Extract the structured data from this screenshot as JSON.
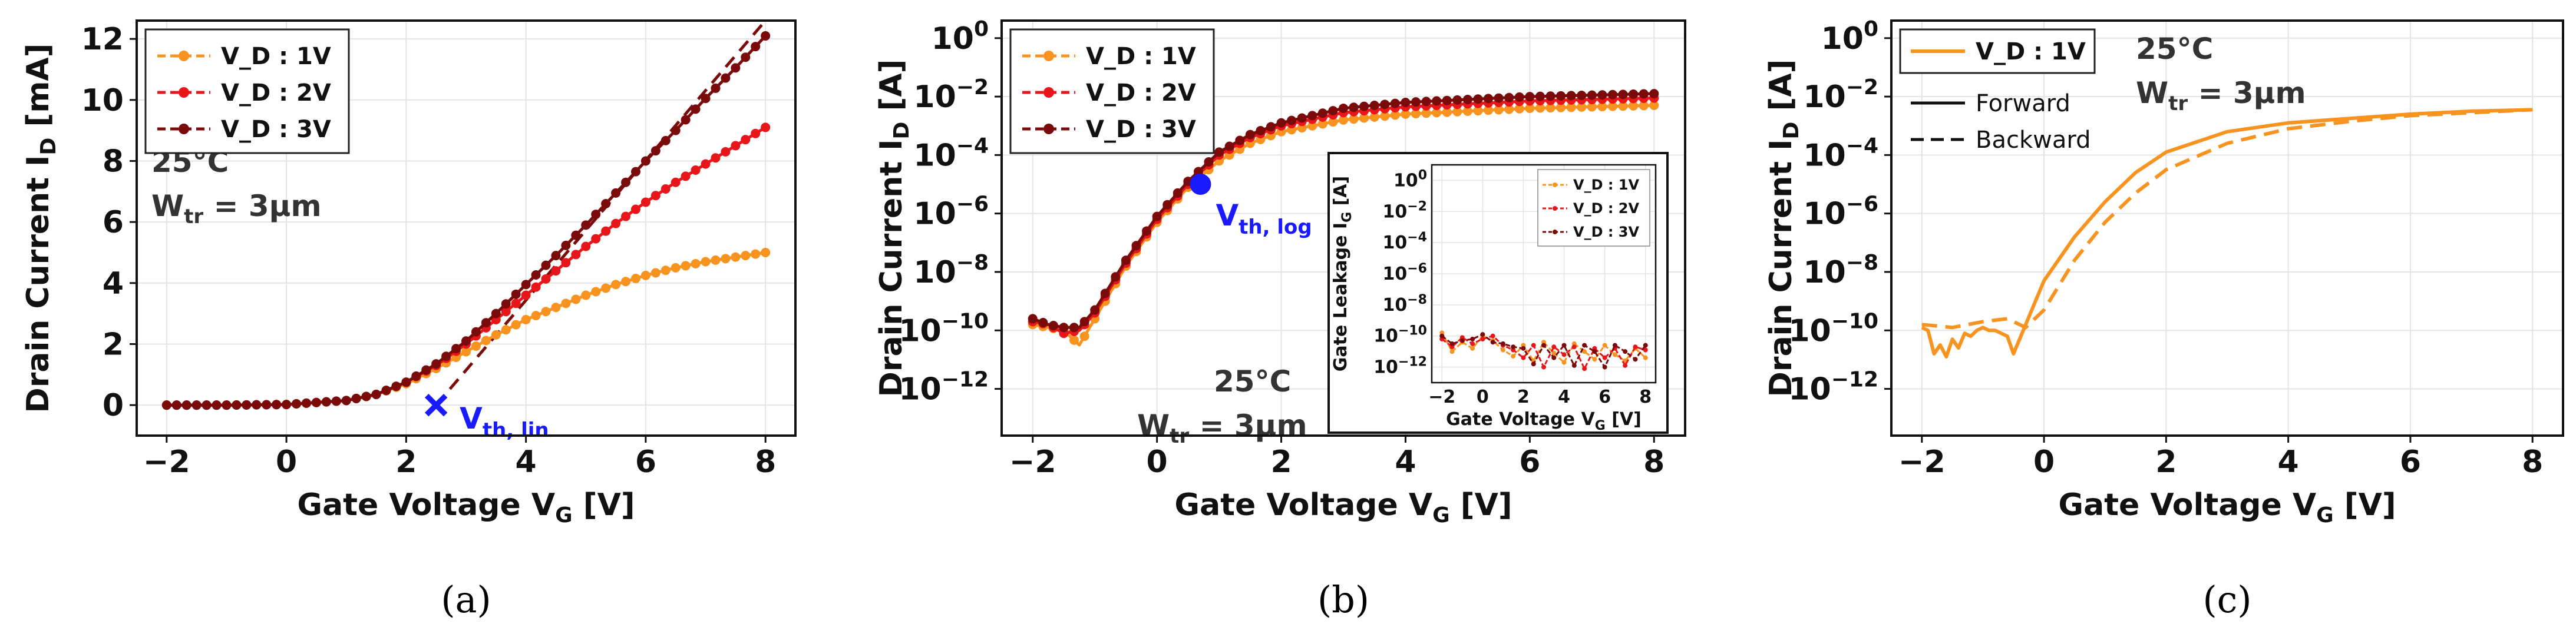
{
  "chart_data": [
    {
      "panel": "a",
      "type": "line",
      "caption": "(a)",
      "xlabel_main": "Gate Voltage  V",
      "xlabel_sub": "G",
      "xlabel_unit": " [V]",
      "ylabel_main": "Drain Current  I",
      "ylabel_sub": "D",
      "ylabel_unit": " [mA]",
      "xlim": [
        -2.5,
        8.5
      ],
      "ylim": [
        -1.0,
        12.6
      ],
      "xticks": [
        "−2",
        "0",
        "2",
        "4",
        "6",
        "8"
      ],
      "yticks": [
        "0",
        "2",
        "4",
        "6",
        "8",
        "10",
        "12"
      ],
      "annotation_temp": "25°C",
      "annotation_w": "W",
      "annotation_w_sub": "tr",
      "annotation_w_val": " = 3μm",
      "vth_label": "V",
      "vth_sub": "th, lin",
      "vth_point": [
        2.5,
        0
      ],
      "fit_line": {
        "x": [
          2.5,
          8.0
        ],
        "y": [
          0,
          12.6
        ]
      },
      "legend": [
        "V_D : 1V",
        "V_D : 2V",
        "V_D : 3V"
      ],
      "series": [
        {
          "name": "V_D : 1V",
          "color": "#f7931e",
          "x": [
            -2,
            -1,
            0,
            1,
            1.5,
            2,
            2.5,
            3,
            3.5,
            4,
            4.5,
            5,
            5.5,
            6,
            6.5,
            7,
            7.5,
            8
          ],
          "y": [
            0,
            0,
            0.02,
            0.15,
            0.35,
            0.7,
            1.2,
            1.75,
            2.3,
            2.8,
            3.2,
            3.6,
            3.95,
            4.25,
            4.5,
            4.7,
            4.85,
            5.0
          ]
        },
        {
          "name": "V_D : 2V",
          "color": "#e8161b",
          "x": [
            -2,
            -1,
            0,
            1,
            1.5,
            2,
            2.5,
            3,
            3.5,
            4,
            4.5,
            5,
            5.5,
            6,
            6.5,
            7,
            7.5,
            8
          ],
          "y": [
            0,
            0,
            0.02,
            0.15,
            0.35,
            0.75,
            1.3,
            2.0,
            2.8,
            3.6,
            4.4,
            5.2,
            5.95,
            6.65,
            7.3,
            7.9,
            8.5,
            9.1
          ]
        },
        {
          "name": "V_D : 3V",
          "color": "#7b0a0a",
          "x": [
            -2,
            -1,
            0,
            1,
            1.5,
            2,
            2.5,
            3,
            3.5,
            4,
            4.5,
            5,
            5.5,
            6,
            6.5,
            7,
            7.5,
            8
          ],
          "y": [
            0,
            0,
            0.02,
            0.15,
            0.35,
            0.75,
            1.35,
            2.1,
            3.0,
            3.95,
            4.9,
            5.9,
            6.95,
            8.0,
            9.0,
            10.05,
            11.05,
            12.1
          ]
        }
      ]
    },
    {
      "panel": "b",
      "type": "line",
      "caption": "(b)",
      "yscale": "log",
      "xlabel_main": "Gate Voltage  V",
      "xlabel_sub": "G",
      "xlabel_unit": " [V]",
      "ylabel_main": "Drain Current  I",
      "ylabel_sub": "D",
      "ylabel_unit": " [A]",
      "xlim": [
        -2.5,
        8.5
      ],
      "ylim_exp": [
        -13.6,
        0.6
      ],
      "xticks": [
        "−2",
        "0",
        "2",
        "4",
        "6",
        "8"
      ],
      "yticks_exp": [
        "0",
        "−2",
        "−4",
        "−6",
        "−8",
        "−10",
        "−12"
      ],
      "ytick_base": "10",
      "annotation_temp": "25°C",
      "annotation_w": "W",
      "annotation_w_sub": "tr",
      "annotation_w_val": " = 3μm",
      "vth_label": "V",
      "vth_sub": "th, log",
      "vth_point_exp": [
        0.7,
        -5.0
      ],
      "legend": [
        "V_D : 1V",
        "V_D : 2V",
        "V_D : 3V"
      ],
      "series": [
        {
          "name": "V_D : 1V",
          "color": "#f7931e",
          "x": [
            -2,
            -1.75,
            -1.5,
            -1.25,
            -1,
            -0.5,
            0,
            0.5,
            1,
            1.5,
            2,
            3,
            4,
            5,
            6,
            7,
            8
          ],
          "y_exp": [
            -9.8,
            -9.9,
            -10.0,
            -10.5,
            -9.6,
            -7.8,
            -6.3,
            -5.1,
            -4.2,
            -3.6,
            -3.2,
            -2.8,
            -2.6,
            -2.5,
            -2.4,
            -2.35,
            -2.3
          ]
        },
        {
          "name": "V_D : 2V",
          "color": "#e8161b",
          "x": [
            -2,
            -1.75,
            -1.5,
            -1.25,
            -1,
            -0.5,
            0,
            0.5,
            1,
            1.5,
            2,
            3,
            4,
            5,
            6,
            7,
            8
          ],
          "y_exp": [
            -9.7,
            -9.8,
            -10.1,
            -10.0,
            -9.4,
            -7.7,
            -6.2,
            -5.0,
            -4.0,
            -3.4,
            -3.0,
            -2.55,
            -2.35,
            -2.25,
            -2.15,
            -2.1,
            -2.05
          ]
        },
        {
          "name": "V_D : 3V",
          "color": "#7b0a0a",
          "x": [
            -2,
            -1.75,
            -1.5,
            -1.25,
            -1,
            -0.5,
            0,
            0.5,
            1,
            1.5,
            2,
            3,
            4,
            5,
            6,
            7,
            8
          ],
          "y_exp": [
            -9.6,
            -9.8,
            -9.9,
            -9.9,
            -9.3,
            -7.6,
            -6.1,
            -4.9,
            -3.9,
            -3.3,
            -2.9,
            -2.4,
            -2.2,
            -2.1,
            -2.0,
            -1.95,
            -1.9
          ]
        }
      ],
      "inset": {
        "xlabel_main": "Gate Voltage  V",
        "xlabel_sub": "G",
        "xlabel_unit": " [V]",
        "ylabel_main": "Gate Leakage  I",
        "ylabel_sub": "G",
        "ylabel_unit": " [A]",
        "xlim": [
          -2.5,
          8.5
        ],
        "ylim_exp": [
          -13.0,
          1.0
        ],
        "xticks": [
          "−2",
          "0",
          "2",
          "4",
          "6",
          "8"
        ],
        "yticks_exp": [
          "0",
          "−2",
          "−4",
          "−6",
          "−8",
          "−10",
          "−12"
        ],
        "ytick_base": "10",
        "legend": [
          "V_D : 1V",
          "V_D : 2V",
          "V_D : 3V"
        ],
        "series": [
          {
            "name": "V_D : 1V",
            "color": "#f7931e",
            "x": [
              -2,
              -1.5,
              -1,
              -0.5,
              0,
              0.5,
              1,
              1.5,
              2,
              2.5,
              3,
              3.5,
              4,
              4.5,
              5,
              5.5,
              6,
              6.5,
              7,
              7.5,
              8
            ],
            "y_exp": [
              -9.8,
              -11.0,
              -10.4,
              -10.8,
              -10.0,
              -10.3,
              -10.9,
              -11.3,
              -10.6,
              -11.6,
              -10.4,
              -11.1,
              -11.7,
              -10.5,
              -11.0,
              -11.5,
              -10.6,
              -11.2,
              -11.6,
              -10.8,
              -11.4
            ]
          },
          {
            "name": "V_D : 2V",
            "color": "#e8161b",
            "x": [
              -2,
              -1.5,
              -1,
              -0.5,
              0,
              0.5,
              1,
              1.5,
              2,
              2.5,
              3,
              3.5,
              4,
              4.5,
              5,
              5.5,
              6,
              6.5,
              7,
              7.5,
              8
            ],
            "y_exp": [
              -10.2,
              -10.7,
              -10.1,
              -10.5,
              -10.2,
              -10.0,
              -10.6,
              -10.9,
              -11.4,
              -10.6,
              -12.0,
              -10.7,
              -11.2,
              -10.7,
              -12.1,
              -10.8,
              -11.4,
              -10.8,
              -11.9,
              -10.7,
              -10.9
            ]
          },
          {
            "name": "V_D : 3V",
            "color": "#7b0a0a",
            "x": [
              -2,
              -1.5,
              -1,
              -0.5,
              0,
              0.5,
              1,
              1.5,
              2,
              2.5,
              3,
              3.5,
              4,
              4.5,
              5,
              5.5,
              6,
              6.5,
              7,
              7.5,
              8
            ],
            "y_exp": [
              -10.0,
              -10.5,
              -10.3,
              -10.2,
              -9.9,
              -10.4,
              -10.5,
              -10.7,
              -10.8,
              -11.8,
              -10.6,
              -11.4,
              -10.6,
              -11.9,
              -10.6,
              -11.0,
              -12.0,
              -10.6,
              -11.0,
              -11.5,
              -10.6
            ]
          }
        ]
      }
    },
    {
      "panel": "c",
      "type": "line",
      "caption": "(c)",
      "yscale": "log",
      "xlabel_main": "Gate Voltage  V",
      "xlabel_sub": "G",
      "xlabel_unit": " [V]",
      "ylabel_main": "Drain Current  I",
      "ylabel_sub": "D",
      "ylabel_unit": " [A]",
      "xlim": [
        -2.5,
        8.5
      ],
      "ylim_exp": [
        -13.6,
        0.6
      ],
      "xticks": [
        "−2",
        "0",
        "2",
        "4",
        "6",
        "8"
      ],
      "yticks_exp": [
        "0",
        "−2",
        "−4",
        "−6",
        "−8",
        "−10",
        "−12"
      ],
      "ytick_base": "10",
      "annotation_temp": "25°C",
      "annotation_w": "W",
      "annotation_w_sub": "tr",
      "annotation_w_val": " = 3μm",
      "legend": [
        "V_D : 1V"
      ],
      "style_legend": [
        "Forward",
        "Backward"
      ],
      "series": [
        {
          "name": "Forward",
          "color": "#f7931e",
          "dash": false,
          "x": [
            -2,
            -1.9,
            -1.8,
            -1.7,
            -1.6,
            -1.5,
            -1.4,
            -1.3,
            -1.2,
            -1.1,
            -1.0,
            -0.9,
            -0.8,
            -0.7,
            -0.6,
            -0.5,
            -0.3,
            0,
            0.5,
            1,
            1.5,
            2,
            3,
            4,
            5,
            6,
            7,
            8
          ],
          "y_exp": [
            -9.9,
            -10.0,
            -10.8,
            -10.5,
            -10.9,
            -10.3,
            -10.6,
            -10.1,
            -10.2,
            -10.0,
            -9.9,
            -10.0,
            -10.0,
            -10.1,
            -10.2,
            -10.8,
            -9.8,
            -8.3,
            -6.8,
            -5.6,
            -4.6,
            -3.9,
            -3.2,
            -2.9,
            -2.75,
            -2.6,
            -2.5,
            -2.45
          ]
        },
        {
          "name": "Backward",
          "color": "#f7931e",
          "dash": true,
          "x": [
            -2,
            -1.5,
            -1.0,
            -0.6,
            -0.3,
            0,
            0.5,
            1,
            1.5,
            2,
            3,
            4,
            5,
            6,
            7,
            8
          ],
          "y_exp": [
            -9.8,
            -9.9,
            -9.7,
            -9.6,
            -9.9,
            -9.3,
            -7.6,
            -6.3,
            -5.3,
            -4.5,
            -3.6,
            -3.1,
            -2.85,
            -2.65,
            -2.55,
            -2.45
          ]
        }
      ]
    }
  ]
}
